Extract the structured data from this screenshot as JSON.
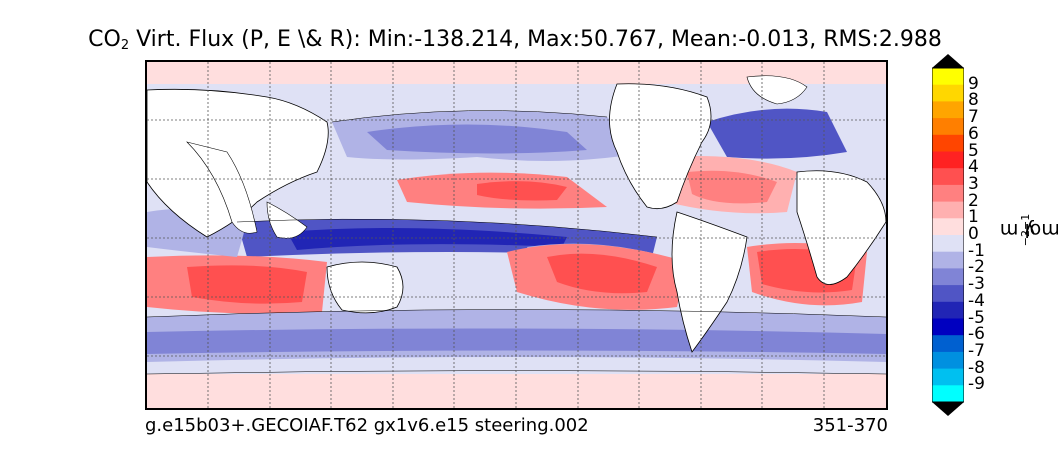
{
  "title": {
    "prefix": "CO",
    "sub": "2",
    "rest": " Virt. Flux (P, E \\& R): Min:-138.214, Max:50.767, Mean:-0.013, RMS:2.988"
  },
  "footer": {
    "left": "g.e15b03+.GECOIAF.T62 gx1v6.e15 steering.002",
    "right": "351-370"
  },
  "colorbar": {
    "unit_parts": [
      "mol m",
      "−2",
      " y",
      "−1"
    ],
    "ticks": [
      "9",
      "8",
      "7",
      "6",
      "5",
      "4",
      "3",
      "2",
      "1",
      "0",
      "-1",
      "-2",
      "-3",
      "-4",
      "-5",
      "-6",
      "-7",
      "-8",
      "-9"
    ],
    "colors": [
      "#ffff00",
      "#ffd700",
      "#ffa500",
      "#ff7f00",
      "#ff4500",
      "#ff2222",
      "#ff5050",
      "#ff8080",
      "#ffb0b0",
      "#ffdede",
      "#dfe1f5",
      "#b0b3e6",
      "#8084d6",
      "#5055c5",
      "#2125b5",
      "#0000c0",
      "#0060d0",
      "#0090e0",
      "#00c0f0",
      "#00ffff"
    ],
    "over_color": "#000000",
    "under_color": "#000000"
  },
  "map": {
    "projection": "cylindrical",
    "grid": true,
    "ocean_base_color": "#dfe1f5",
    "land_color": "#ffffff"
  }
}
